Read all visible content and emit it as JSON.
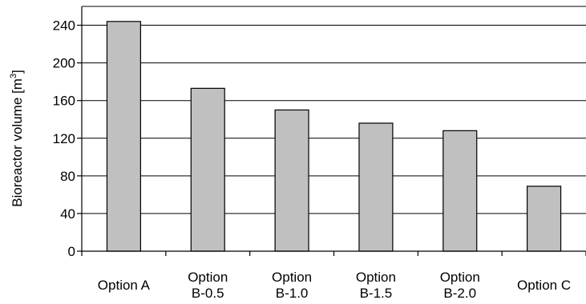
{
  "colors": {
    "bar_fill": "#c0c0c0",
    "bar_stroke": "#000000",
    "grid": "#000000",
    "background": "#ffffff"
  },
  "chart_data": {
    "type": "bar",
    "title": "",
    "xlabel": "",
    "ylabel": "Bioreactor volume [m",
    "ylabel_superscript": "3",
    "ylabel_suffix": "]",
    "ylim": [
      0,
      260
    ],
    "yticks": [
      0,
      40,
      80,
      120,
      160,
      200,
      240
    ],
    "grid": true,
    "legend": "none",
    "categories": [
      [
        "Option A"
      ],
      [
        "Option",
        "B-0.5"
      ],
      [
        "Option",
        "B-1.0"
      ],
      [
        "Option",
        "B-1.5"
      ],
      [
        "Option",
        "B-2.0"
      ],
      [
        "Option C"
      ]
    ],
    "values": [
      244,
      173,
      150,
      136,
      128,
      69
    ]
  }
}
